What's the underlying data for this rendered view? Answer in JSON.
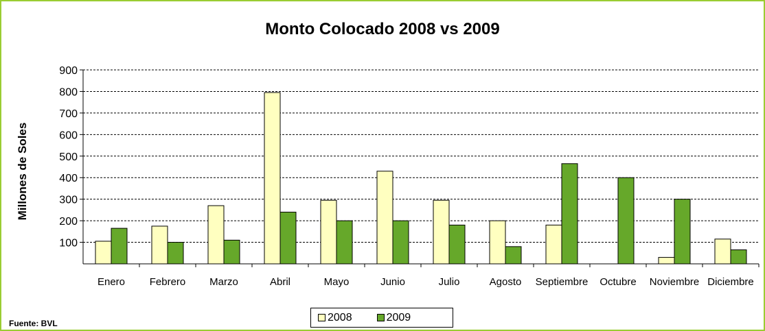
{
  "chart_data": {
    "type": "bar",
    "title": "Monto Colocado 2008 vs 2009",
    "xlabel": "",
    "ylabel": "Millones de Soles",
    "ylim": [
      0,
      900
    ],
    "yticks": [
      100,
      200,
      300,
      400,
      500,
      600,
      700,
      800,
      900
    ],
    "grid": true,
    "legend_position": "bottom",
    "categories": [
      "Enero",
      "Febrero",
      "Marzo",
      "Abril",
      "Mayo",
      "Junio",
      "Julio",
      "Agosto",
      "Septiembre",
      "Octubre",
      "Noviembre",
      "Diciembre"
    ],
    "series": [
      {
        "name": "2008",
        "color": "#ffffc0",
        "values": [
          105,
          175,
          270,
          795,
          295,
          430,
          295,
          200,
          180,
          0,
          30,
          115
        ]
      },
      {
        "name": "2009",
        "color": "#66a82a",
        "values": [
          165,
          100,
          110,
          240,
          200,
          200,
          180,
          80,
          465,
          400,
          300,
          65
        ]
      }
    ],
    "source": "Fuente: BVL"
  }
}
